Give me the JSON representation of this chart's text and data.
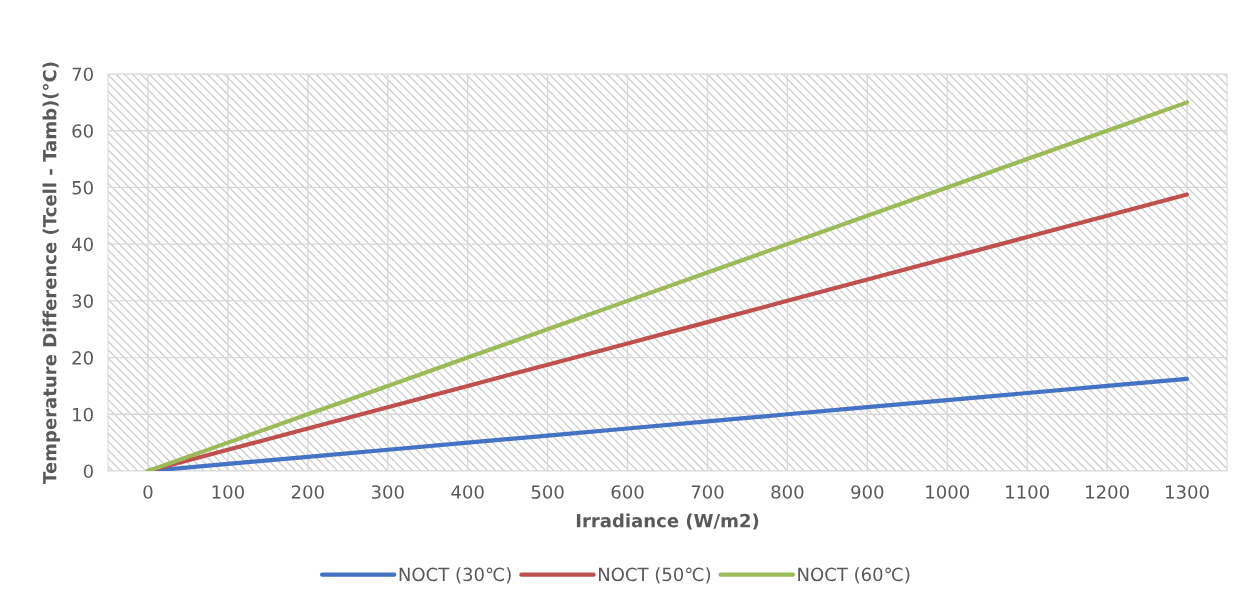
{
  "chart_data": {
    "type": "line",
    "xlabel": "Irradiance (W/m2)",
    "ylabel": "Temperature Difference (Tcell - Tamb)(°C)",
    "categories": [
      "0",
      "100",
      "200",
      "300",
      "400",
      "500",
      "600",
      "700",
      "800",
      "900",
      "1000",
      "1100",
      "1200",
      "1300"
    ],
    "series": [
      {
        "name": "NOCT (30℃)",
        "color": "#4472c4",
        "values": [
          0,
          1.25,
          2.5,
          3.75,
          5,
          6.25,
          7.5,
          8.75,
          10,
          11.25,
          12.5,
          13.75,
          15,
          16.25
        ]
      },
      {
        "name": "NOCT (50℃)",
        "color": "#c0504d",
        "values": [
          0,
          3.75,
          7.5,
          11.25,
          15,
          18.75,
          22.5,
          26.25,
          30,
          33.75,
          37.5,
          41.25,
          45,
          48.75
        ]
      },
      {
        "name": "NOCT (60℃)",
        "color": "#9bbb59",
        "values": [
          0,
          5,
          10,
          15,
          20,
          25,
          30,
          35,
          40,
          45,
          50,
          55,
          60,
          65
        ]
      }
    ],
    "ylim": [
      0,
      70
    ],
    "yticks": [
      0,
      10,
      20,
      30,
      40,
      50,
      60,
      70
    ],
    "grid": true,
    "legend": "bottom",
    "marker": "none",
    "line_style": "solid"
  }
}
